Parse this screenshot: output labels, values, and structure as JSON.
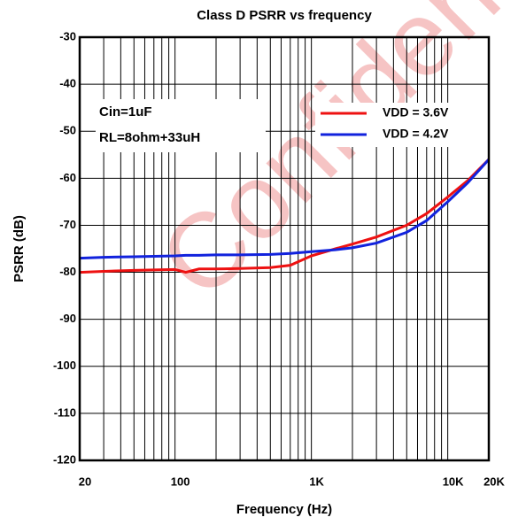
{
  "chart_data": {
    "type": "line",
    "title": "Class D PSRR vs frequency",
    "xlabel": "Frequency (Hz)",
    "ylabel": "PSRR (dB)",
    "watermark": "Confidential",
    "annotations": [
      "Cin=1uF",
      "RL=8ohm+33uH"
    ],
    "xscale": "log",
    "xlim": [
      20,
      20000
    ],
    "ylim": [
      -120,
      -30
    ],
    "xticks": [
      20,
      100,
      {
        "value": 1000,
        "label": "1K"
      },
      {
        "value": 10000,
        "label": "10K"
      },
      {
        "value": 20000,
        "label": "20K"
      }
    ],
    "xgrid": [
      30,
      40,
      50,
      60,
      70,
      80,
      90,
      200,
      300,
      400,
      500,
      600,
      700,
      800,
      900,
      2000,
      3000,
      4000,
      5000,
      6000,
      7000,
      8000,
      9000
    ],
    "yticks": [
      -120,
      -110,
      -100,
      -90,
      -80,
      -70,
      -60,
      -50,
      -40,
      -30
    ],
    "grid": true,
    "legend": "upper right",
    "x": [
      20,
      30,
      50,
      70,
      100,
      120,
      150,
      200,
      300,
      500,
      700,
      1000,
      1500,
      2000,
      3000,
      5000,
      7000,
      10000,
      14000,
      20000
    ],
    "series": [
      {
        "name": "VDD = 3.6V",
        "color": "#ee1111",
        "values": [
          -80,
          -79.8,
          -79.6,
          -79.5,
          -79.4,
          -80,
          -79.3,
          -79.3,
          -79.2,
          -79,
          -78.5,
          -76.5,
          -75,
          -74,
          -72.5,
          -70,
          -67.5,
          -64,
          -60.5,
          -56
        ]
      },
      {
        "name": "VDD = 4.2V",
        "color": "#1122dd",
        "values": [
          -77,
          -76.8,
          -76.7,
          -76.6,
          -76.5,
          -76.4,
          -76.4,
          -76.3,
          -76.3,
          -76.2,
          -76,
          -75.6,
          -75.2,
          -74.8,
          -73.8,
          -71.5,
          -69,
          -65,
          -61,
          -56
        ]
      }
    ]
  }
}
